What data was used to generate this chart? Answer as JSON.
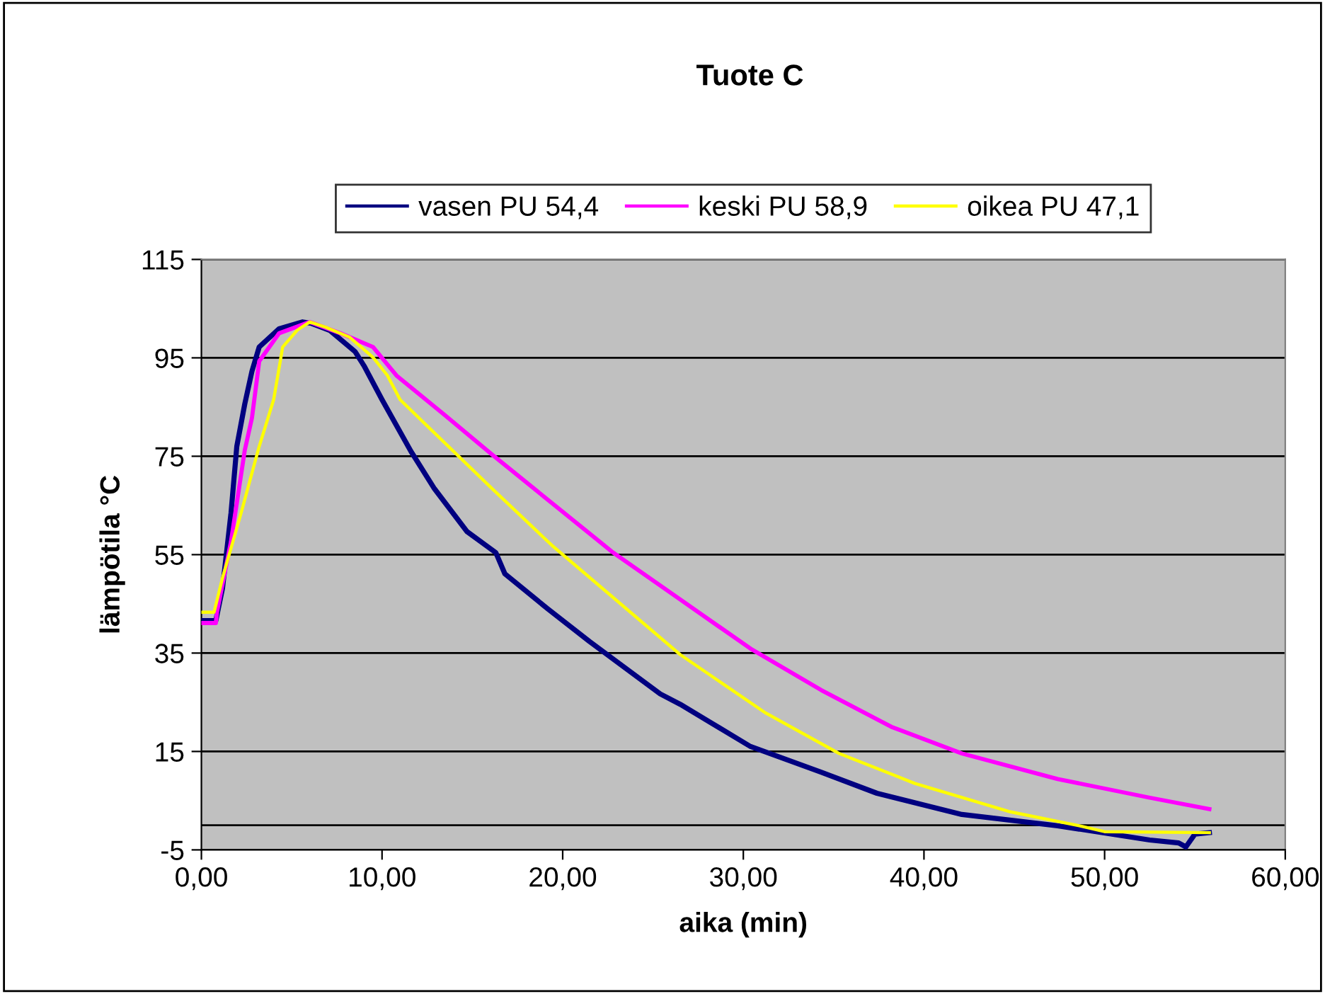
{
  "chart_data": {
    "type": "line",
    "title": "Tuote C",
    "xlabel": "aika (min)",
    "ylabel": "lämpötila °C",
    "xlim": [
      0,
      60
    ],
    "xticks": [
      {
        "value": 0,
        "label": "0,00"
      },
      {
        "value": 10,
        "label": "10,00"
      },
      {
        "value": 20,
        "label": "20,00"
      },
      {
        "value": 30,
        "label": "30,00"
      },
      {
        "value": 40,
        "label": "40,00"
      },
      {
        "value": 50,
        "label": "50,00"
      },
      {
        "value": 60,
        "label": "60,00"
      }
    ],
    "ylim": [
      -5,
      115
    ],
    "yticks": [
      -5,
      15,
      35,
      55,
      75,
      95,
      115
    ],
    "grid": "y",
    "legend": "top",
    "marker": "none",
    "line_style": "solid",
    "ref_lines": [
      {
        "axis": "y",
        "value": 0,
        "color": "#000000"
      }
    ],
    "series": [
      {
        "name": "vasen PU 54,4",
        "color": "#000080",
        "x": [
          0,
          0.8,
          1.17,
          1.64,
          1.96,
          2.4,
          2.8,
          3.2,
          4.3,
          5.6,
          6.1,
          7.1,
          8.5,
          9.0,
          10.0,
          11.6,
          12.9,
          14.7,
          16.3,
          16.8,
          19.2,
          21.5,
          25.4,
          26.5,
          30.4,
          34.3,
          37.4,
          42.1,
          47.4,
          52.5,
          54.1,
          54.5,
          55.0,
          55.8
        ],
        "values": [
          41.6,
          41.6,
          48.2,
          63.5,
          77,
          85.6,
          92.3,
          97.2,
          100.9,
          102.3,
          102,
          100.6,
          96.3,
          93.4,
          86.5,
          76,
          68.4,
          59.7,
          55.4,
          51.1,
          43.9,
          37.3,
          26.7,
          24.6,
          16,
          10.8,
          6.5,
          2.2,
          -0.1,
          -3.0,
          -3.6,
          -4.4,
          -1.8,
          -1.5
        ]
      },
      {
        "name": "keski PU 58,9",
        "color": "#ff00ff",
        "x": [
          0,
          0.8,
          0.86,
          1.64,
          2.4,
          2.8,
          3.2,
          4.3,
          6.0,
          7.7,
          9.5,
          10.8,
          13.4,
          16.1,
          19.4,
          22.8,
          26.5,
          30.4,
          34.3,
          38.2,
          42.1,
          47.4,
          52.5,
          55.8
        ],
        "values": [
          41.1,
          41.1,
          43.3,
          57.7,
          76.2,
          82.8,
          94.3,
          100,
          102.3,
          100,
          97.2,
          91.4,
          83.6,
          75.3,
          65.5,
          55.4,
          45.9,
          35.9,
          27.5,
          20,
          14.6,
          9.4,
          5.6,
          3.3
        ]
      },
      {
        "name": "oikea PU 47,1",
        "color": "#ffff00",
        "x": [
          0,
          0.7,
          1.17,
          2.2,
          3.2,
          4.0,
          4.5,
          5.3,
          6.0,
          6.9,
          8.2,
          9.5,
          10.3,
          11.0,
          12.6,
          13.9,
          16.1,
          19.4,
          26.5,
          31.2,
          35.3,
          39.5,
          44.7,
          48.6,
          50.0,
          55.8
        ],
        "values": [
          43.3,
          43.3,
          50.3,
          63.5,
          77,
          86.5,
          97.2,
          100.6,
          102.3,
          101.2,
          99.2,
          95.1,
          91.4,
          86.5,
          80.8,
          76.2,
          68.4,
          56.9,
          34.7,
          22.9,
          14.6,
          8.5,
          2.8,
          -0.1,
          -1.3,
          -1.5
        ]
      }
    ]
  }
}
